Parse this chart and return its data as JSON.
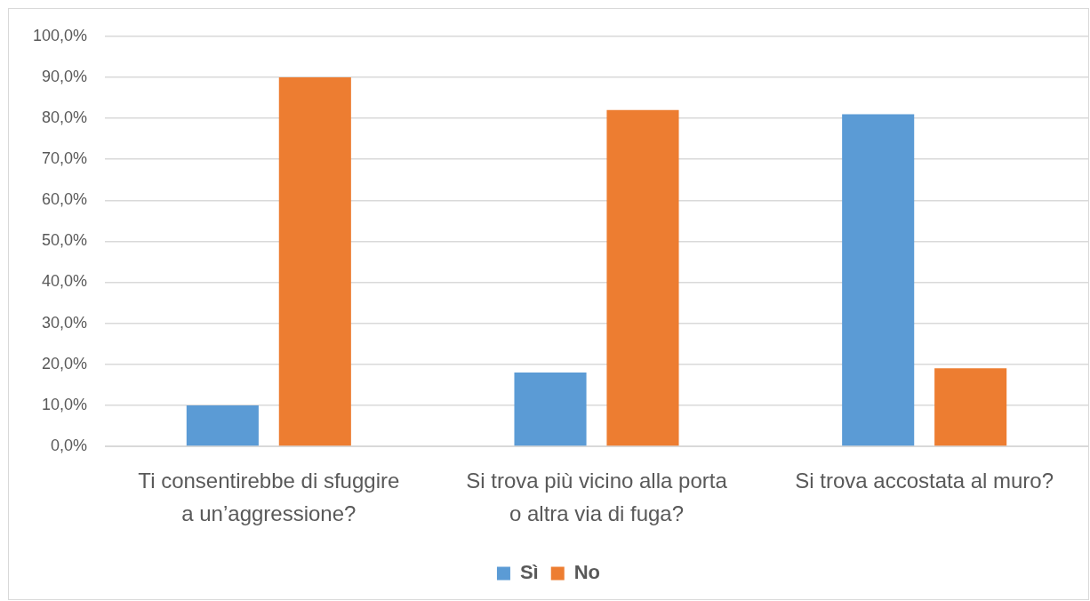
{
  "chart_data": {
    "type": "bar",
    "categories": [
      "Ti consentirebbe di sfuggire a un’aggressione?",
      "Si trova più vicino alla porta o altra via di fuga?",
      "Si trova accostata al muro?"
    ],
    "series": [
      {
        "name": "Sì",
        "color": "#5b9bd5",
        "values": [
          10,
          18,
          81
        ]
      },
      {
        "name": "No",
        "color": "#ed7d31",
        "values": [
          90,
          82,
          19
        ]
      }
    ],
    "ylim": [
      0,
      100
    ],
    "yticks": [
      {
        "value": 0,
        "label": "0,0%"
      },
      {
        "value": 10,
        "label": "10,0%"
      },
      {
        "value": 20,
        "label": "20,0%"
      },
      {
        "value": 30,
        "label": "30,0%"
      },
      {
        "value": 40,
        "label": "40,0%"
      },
      {
        "value": 50,
        "label": "50,0%"
      },
      {
        "value": 60,
        "label": "60,0%"
      },
      {
        "value": 70,
        "label": "70,0%"
      },
      {
        "value": 80,
        "label": "80,0%"
      },
      {
        "value": 90,
        "label": "90,0%"
      },
      {
        "value": 100,
        "label": "100,0%"
      }
    ],
    "grid": "y",
    "legend": "bottom"
  }
}
